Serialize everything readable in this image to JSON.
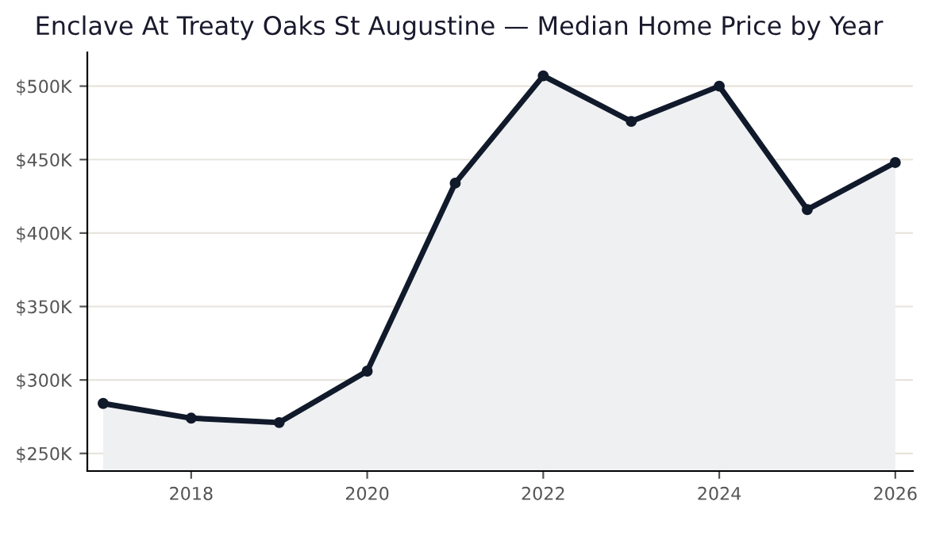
{
  "chart_data": {
    "type": "area",
    "title": "Enclave At Treaty Oaks St Augustine — Median Home Price by Year",
    "x": [
      2017,
      2018,
      2019,
      2020,
      2021,
      2022,
      2023,
      2024,
      2025,
      2026
    ],
    "series": [
      {
        "color": "#111a2b",
        "values": [
          284,
          274,
          271,
          306,
          434,
          507,
          476,
          500,
          416,
          448
        ]
      }
    ],
    "xlim": [
      2016.82,
      2026.2
    ],
    "xticks": [
      2018,
      2020,
      2022,
      2024,
      2026
    ],
    "ylim": [
      238,
      523
    ],
    "yticks": [
      {
        "value": 250,
        "label": "$250K"
      },
      {
        "value": 300,
        "label": "$300K"
      },
      {
        "value": 350,
        "label": "$350K"
      },
      {
        "value": 400,
        "label": "$400K"
      },
      {
        "value": 450,
        "label": "$450K"
      },
      {
        "value": 500,
        "label": "$500K"
      }
    ],
    "grid": "y",
    "marker": "circle",
    "line_style": "solid"
  }
}
